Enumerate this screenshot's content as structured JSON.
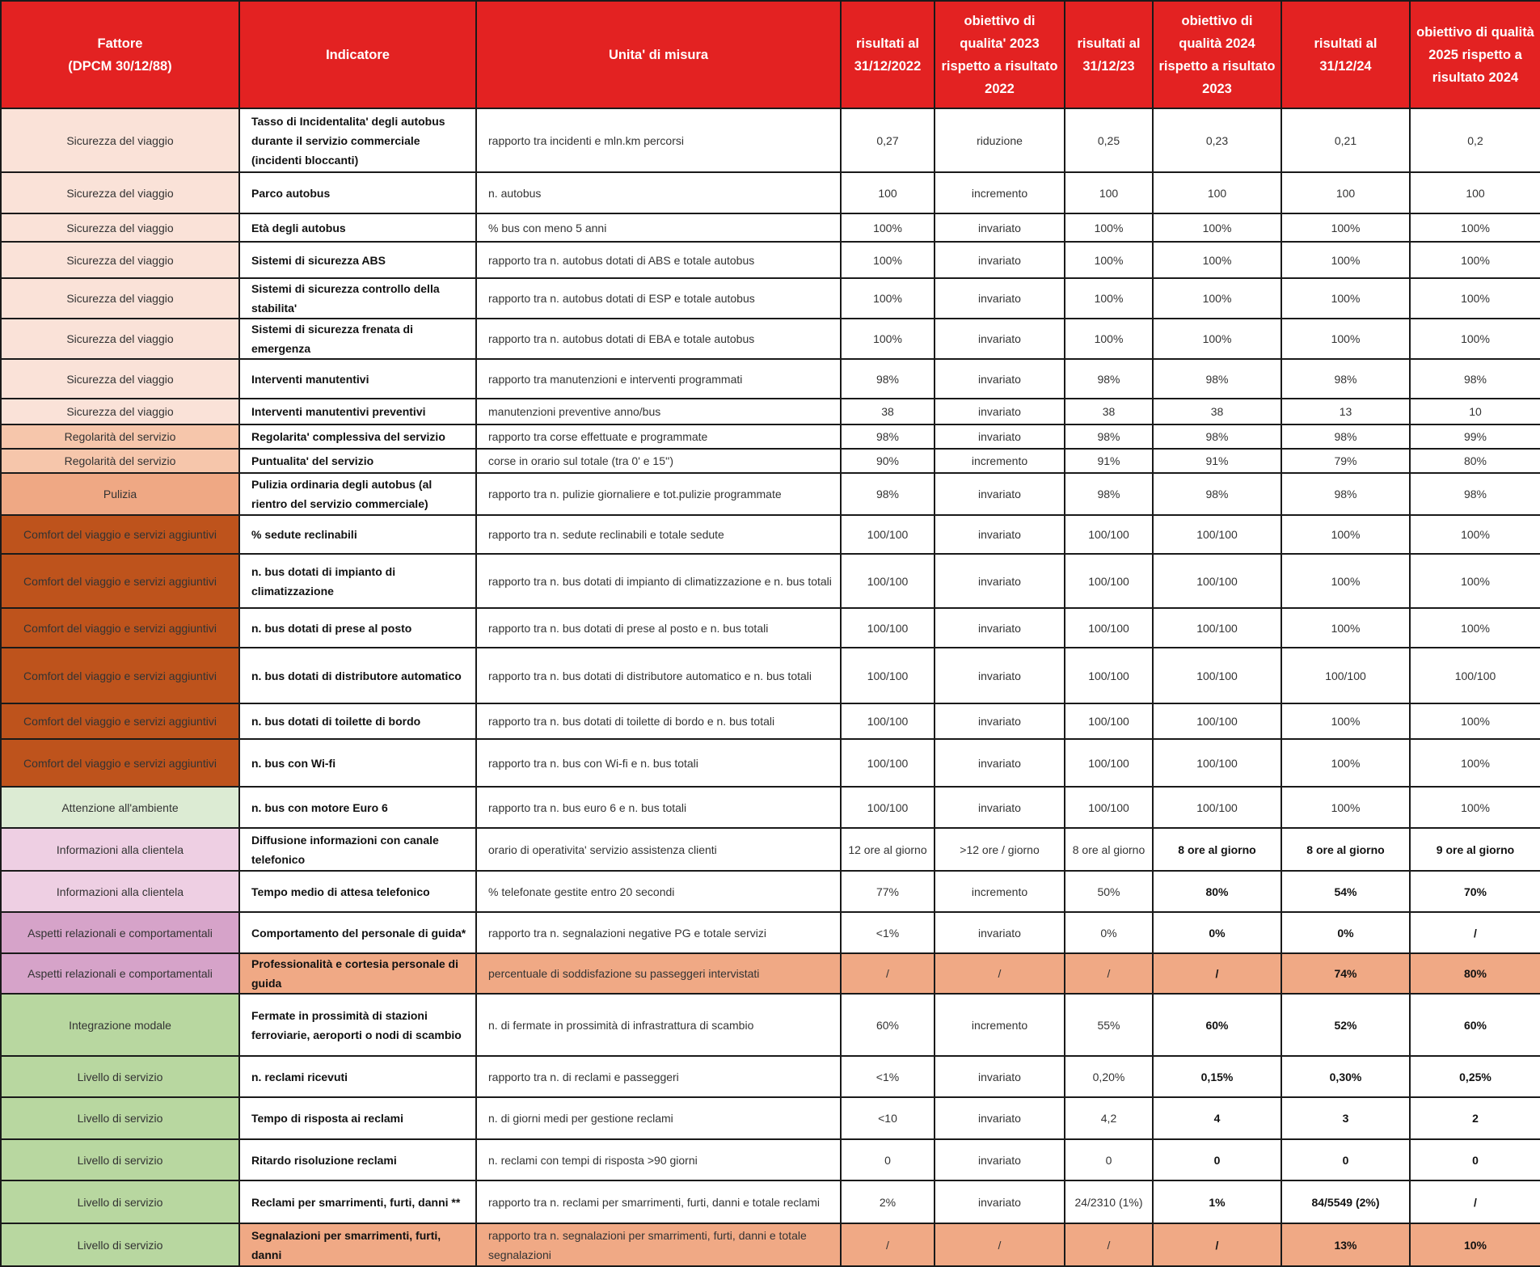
{
  "headers": [
    "Fattore\n(DPCM 30/12/88)",
    "Indicatore",
    "Unita' di misura",
    "risultati al 31/12/2022",
    "obiettivo di qualita' 2023 rispetto a risultato 2022",
    "risultati al 31/12/23",
    "obiettivo di qualità 2024 rispetto a risultato 2023",
    "risultati al 31/12/24",
    "obiettivo di qualità 2025 rispetto a risultato 2024"
  ],
  "colors": {
    "header": "#e32222",
    "highlight_row": "#f0a985",
    "fattore": {
      "Sicurezza del viaggio": "#fae2d8",
      "Regolarità del servizio": "#f6c6ab",
      "Pulizia": "#efa884",
      "Comfort del viaggio e servizi aggiuntivi": "#be531c",
      "Attenzione all'ambiente": "#dcebd3",
      "Informazioni alla clientela": "#eecfe3",
      "Aspetti relazionali e comportamentali": "#d6a3c9",
      "Integrazione modale": "#b8d7a0",
      "Livello di servizio": "#b8d7a0"
    }
  },
  "rows": [
    {
      "cells": [
        "Sicurezza del viaggio",
        "Tasso di Incidentalita' degli autobus durante il servizio commerciale (incidenti bloccanti)",
        "rapporto tra incidenti e mln.km percorsi",
        "0,27",
        "riduzione",
        "0,25",
        "0,23",
        "0,21",
        "0,2"
      ]
    },
    {
      "cells": [
        "Sicurezza del viaggio",
        "Parco autobus",
        "n. autobus",
        "100",
        "incremento",
        "100",
        "100",
        "100",
        "100"
      ]
    },
    {
      "cells": [
        "Sicurezza del viaggio",
        "Età degli autobus",
        "% bus con meno 5 anni",
        "100%",
        "invariato",
        "100%",
        "100%",
        "100%",
        "100%"
      ]
    },
    {
      "cells": [
        "Sicurezza del viaggio",
        "Sistemi di sicurezza ABS",
        "rapporto tra n. autobus dotati di ABS e totale autobus",
        "100%",
        "invariato",
        "100%",
        "100%",
        "100%",
        "100%"
      ]
    },
    {
      "cells": [
        "Sicurezza del viaggio",
        "Sistemi di sicurezza controllo della stabilita'",
        "rapporto tra n. autobus dotati di ESP e totale autobus",
        "100%",
        "invariato",
        "100%",
        "100%",
        "100%",
        "100%"
      ]
    },
    {
      "cells": [
        "Sicurezza del viaggio",
        "Sistemi di sicurezza frenata di emergenza",
        "rapporto tra n. autobus dotati di EBA e totale autobus",
        "100%",
        "invariato",
        "100%",
        "100%",
        "100%",
        "100%"
      ]
    },
    {
      "cells": [
        "Sicurezza del viaggio",
        "Interventi manutentivi",
        "rapporto tra manutenzioni e interventi programmati",
        "98%",
        "invariato",
        "98%",
        "98%",
        "98%",
        "98%"
      ]
    },
    {
      "cells": [
        "Sicurezza del viaggio",
        "Interventi manutentivi preventivi",
        "manutenzioni preventive anno/bus",
        "38",
        "invariato",
        "38",
        "38",
        "13",
        "10"
      ]
    },
    {
      "cells": [
        "Regolarità del servizio",
        "Regolarita' complessiva del servizio",
        "rapporto tra corse effettuate e  programmate",
        "98%",
        "invariato",
        "98%",
        "98%",
        "98%",
        "99%"
      ]
    },
    {
      "cells": [
        "Regolarità del servizio",
        "Puntualita' del servizio",
        "corse in orario sul totale (tra 0' e 15'')",
        "90%",
        "incremento",
        "91%",
        "91%",
        "79%",
        "80%"
      ]
    },
    {
      "cells": [
        "Pulizia",
        "Pulizia ordinaria degli autobus (al rientro del servizio commerciale)",
        "rapporto tra n. pulizie giornaliere e  tot.pulizie programmate",
        "98%",
        "invariato",
        "98%",
        "98%",
        "98%",
        "98%"
      ]
    },
    {
      "cells": [
        "Comfort del viaggio e servizi aggiuntivi",
        "% sedute reclinabili",
        "rapporto tra n. sedute reclinabili e  totale sedute",
        "100/100",
        "invariato",
        "100/100",
        "100/100",
        "100%",
        "100%"
      ]
    },
    {
      "cells": [
        "Comfort del viaggio e servizi aggiuntivi",
        "n. bus dotati di impianto di climatizzazione",
        "rapporto tra n. bus dotati di impianto di climatizzazione e  n. bus totali",
        "100/100",
        "invariato",
        "100/100",
        "100/100",
        "100%",
        "100%"
      ]
    },
    {
      "cells": [
        "Comfort del viaggio e servizi aggiuntivi",
        "n. bus dotati di prese al posto",
        "rapporto tra n. bus dotati di prese al posto e  n. bus totali",
        "100/100",
        "invariato",
        "100/100",
        "100/100",
        "100%",
        "100%"
      ]
    },
    {
      "cells": [
        "Comfort del viaggio e servizi aggiuntivi",
        "n. bus dotati di distributore automatico",
        "rapporto tra n. bus dotati di distributore automatico e  n. bus totali",
        "100/100",
        "invariato",
        "100/100",
        "100/100",
        "100/100",
        "100/100"
      ]
    },
    {
      "cells": [
        "Comfort del viaggio e servizi aggiuntivi",
        "n. bus dotati di  toilette di bordo",
        "rapporto tra n. bus dotati di  toilette di bordo e  n. bus totali",
        "100/100",
        "invariato",
        "100/100",
        "100/100",
        "100%",
        "100%"
      ]
    },
    {
      "cells": [
        "Comfort del viaggio e servizi aggiuntivi",
        "n. bus con Wi-fi",
        "rapporto tra n. bus con Wi-fi e  n. bus totali",
        "100/100",
        "invariato",
        "100/100",
        "100/100",
        "100%",
        "100%"
      ]
    },
    {
      "cells": [
        "Attenzione all'ambiente",
        "n. bus con motore Euro 6",
        "rapporto tra n. bus euro 6 e n. bus totali",
        "100/100",
        "invariato",
        "100/100",
        "100/100",
        "100%",
        "100%"
      ]
    },
    {
      "cells": [
        "Informazioni alla clientela",
        "Diffusione informazioni con canale telefonico",
        "orario di operativita' servizio assistenza clienti",
        "12 ore al giorno",
        ">12 ore / giorno",
        "8 ore al giorno",
        "8 ore al giorno",
        "8 ore al giorno",
        "9 ore al giorno"
      ]
    },
    {
      "cells": [
        "Informazioni alla clientela",
        "Tempo medio di attesa telefonico",
        "% telefonate gestite entro 20 secondi",
        "77%",
        "incremento",
        "50%",
        "80%",
        "54%",
        "70%"
      ]
    },
    {
      "cells": [
        "Aspetti relazionali e comportamentali",
        "Comportamento del personale di guida*",
        "rapporto tra n. segnalazioni negative PG e totale servizi",
        "<1%",
        "invariato",
        "0%",
        "0%",
        "0%",
        "/"
      ]
    },
    {
      "cells": [
        "Aspetti relazionali e comportamentali",
        "Professionalità e cortesia personale di guida",
        "percentuale di soddisfazione su passeggeri intervistati",
        "/",
        "/",
        "/",
        "/",
        "74%",
        "80%"
      ],
      "highlight": true
    },
    {
      "cells": [
        "Integrazione modale",
        "Fermate in prossimità di stazioni ferroviarie, aeroporti o nodi di scambio",
        "n. di fermate in prossimità di infrastrattura di scambio",
        "60%",
        "incremento",
        "55%",
        "60%",
        "52%",
        "60%"
      ]
    },
    {
      "cells": [
        "Livello di servizio",
        "n. reclami ricevuti",
        "rapporto tra n. di reclami e passeggeri",
        "<1%",
        "invariato",
        "0,20%",
        "0,15%",
        "0,30%",
        "0,25%"
      ]
    },
    {
      "cells": [
        "Livello di servizio",
        "Tempo di risposta ai reclami",
        "n. di giorni medi per gestione reclami",
        "<10",
        "invariato",
        "4,2",
        "4",
        "3",
        "2"
      ]
    },
    {
      "cells": [
        "Livello di servizio",
        "Ritardo risoluzione reclami",
        "n. reclami con tempi di risposta >90 giorni",
        "0",
        "invariato",
        "0",
        "0",
        "0",
        "0"
      ]
    },
    {
      "cells": [
        "Livello di servizio",
        "Reclami per smarrimenti, furti, danni **",
        "rapporto tra n. reclami per smarrimenti, furti, danni e  totale reclami",
        "2%",
        "invariato",
        "24/2310 (1%)",
        "1%",
        "84/5549 (2%)",
        "/"
      ]
    },
    {
      "cells": [
        "Livello di servizio",
        "Segnalazioni per smarrimenti, furti, danni",
        "rapporto tra n. segnalazioni per smarrimenti, furti, danni e totale segnalazioni",
        "/",
        "/",
        "/",
        "/",
        "13%",
        "10%"
      ],
      "highlight": true
    }
  ]
}
